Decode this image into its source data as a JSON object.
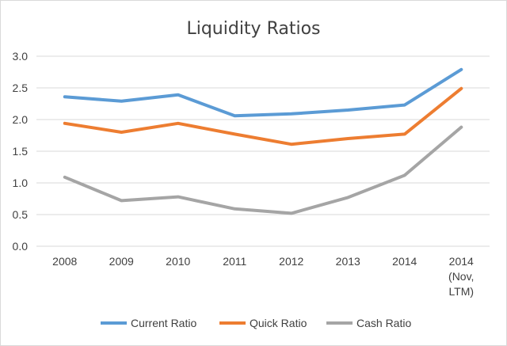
{
  "chart_data": {
    "type": "line",
    "title": "Liquidity Ratios",
    "xlabel": "",
    "ylabel": "",
    "ylim": [
      0,
      3
    ],
    "y_ticks": [
      "0.0",
      "0.5",
      "1.0",
      "1.5",
      "2.0",
      "2.5",
      "3.0"
    ],
    "categories": [
      [
        "2008"
      ],
      [
        "2009"
      ],
      [
        "2010"
      ],
      [
        "2011"
      ],
      [
        "2012"
      ],
      [
        "2013"
      ],
      [
        "2014"
      ],
      [
        "2014",
        "(Nov,",
        "LTM)"
      ]
    ],
    "series": [
      {
        "name": "Current Ratio",
        "color": "#5b9bd5",
        "values": [
          2.36,
          2.29,
          2.39,
          2.06,
          2.09,
          2.15,
          2.23,
          2.79
        ]
      },
      {
        "name": "Quick Ratio",
        "color": "#ed7d31",
        "values": [
          1.94,
          1.8,
          1.94,
          1.77,
          1.61,
          1.7,
          1.77,
          2.49
        ]
      },
      {
        "name": "Cash Ratio",
        "color": "#a5a5a5",
        "values": [
          1.09,
          0.72,
          0.78,
          0.59,
          0.52,
          0.77,
          1.12,
          1.88
        ]
      }
    ],
    "grid": true,
    "legend_position": "bottom"
  }
}
